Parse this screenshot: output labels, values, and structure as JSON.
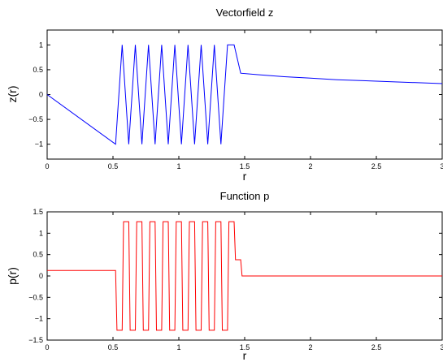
{
  "chart_data": [
    {
      "type": "line",
      "title": "Vectorfield z",
      "xlabel": "r",
      "ylabel": "z(r)",
      "xlim": [
        0,
        3
      ],
      "ylim": [
        -1.3,
        1.3
      ],
      "xticks": [
        0,
        0.5,
        1,
        1.5,
        2,
        2.5,
        3
      ],
      "xtick_labels": [
        "0",
        "0.5",
        "1",
        "1.5",
        "2",
        "2.5",
        "3"
      ],
      "yticks": [
        -1,
        -0.5,
        0,
        0.5,
        1
      ],
      "ytick_labels": [
        "−1",
        "−0.5",
        "0",
        "0.5",
        "1"
      ],
      "grid": false,
      "series": [
        {
          "color": "#0000ff",
          "x": [
            0,
            0.52,
            0.57,
            0.62,
            0.67,
            0.72,
            0.77,
            0.82,
            0.87,
            0.92,
            0.97,
            1.02,
            1.07,
            1.12,
            1.17,
            1.22,
            1.27,
            1.32,
            1.37,
            1.42,
            1.47,
            1.6,
            1.8,
            2.0,
            2.2,
            2.4,
            2.6,
            2.8,
            3.0
          ],
          "y": [
            0,
            -1,
            1,
            -1,
            1,
            -1,
            1,
            -1,
            1,
            -1,
            1,
            -1,
            1,
            -1,
            1,
            -1,
            1,
            -1,
            1,
            1,
            0.43,
            0.4,
            0.36,
            0.33,
            0.3,
            0.28,
            0.26,
            0.24,
            0.22
          ]
        }
      ]
    },
    {
      "type": "line",
      "title": "Function p",
      "xlabel": "r",
      "ylabel": "p(r)",
      "xlim": [
        0,
        3
      ],
      "ylim": [
        -1.5,
        1.5
      ],
      "xticks": [
        0,
        0.5,
        1,
        1.5,
        2,
        2.5,
        3
      ],
      "xtick_labels": [
        "0",
        "0.5",
        "1",
        "1.5",
        "2",
        "2.5",
        "3"
      ],
      "yticks": [
        -1.5,
        -1,
        -0.5,
        0,
        0.5,
        1,
        1.5
      ],
      "ytick_labels": [
        "−1.5",
        "−1",
        "−0.5",
        "0",
        "0.5",
        "1",
        "1.5"
      ],
      "grid": false,
      "series": [
        {
          "color": "#ff0000",
          "x": [
            0,
            0.52,
            0.53,
            0.57,
            0.58,
            0.62,
            0.63,
            0.67,
            0.68,
            0.72,
            0.73,
            0.77,
            0.78,
            0.82,
            0.83,
            0.87,
            0.88,
            0.92,
            0.93,
            0.97,
            0.98,
            1.02,
            1.03,
            1.07,
            1.08,
            1.12,
            1.13,
            1.17,
            1.18,
            1.22,
            1.23,
            1.27,
            1.28,
            1.32,
            1.33,
            1.37,
            1.38,
            1.42,
            1.43,
            1.47,
            1.48,
            3.0
          ],
          "y": [
            0.13,
            0.13,
            -1.27,
            -1.27,
            1.27,
            1.27,
            -1.27,
            -1.27,
            1.27,
            1.27,
            -1.27,
            -1.27,
            1.27,
            1.27,
            -1.27,
            -1.27,
            1.27,
            1.27,
            -1.27,
            -1.27,
            1.27,
            1.27,
            -1.27,
            -1.27,
            1.27,
            1.27,
            -1.27,
            -1.27,
            1.27,
            1.27,
            -1.27,
            -1.27,
            1.27,
            1.27,
            -1.27,
            -1.27,
            1.27,
            1.27,
            0.38,
            0.38,
            0.0,
            0.0
          ]
        }
      ]
    }
  ]
}
